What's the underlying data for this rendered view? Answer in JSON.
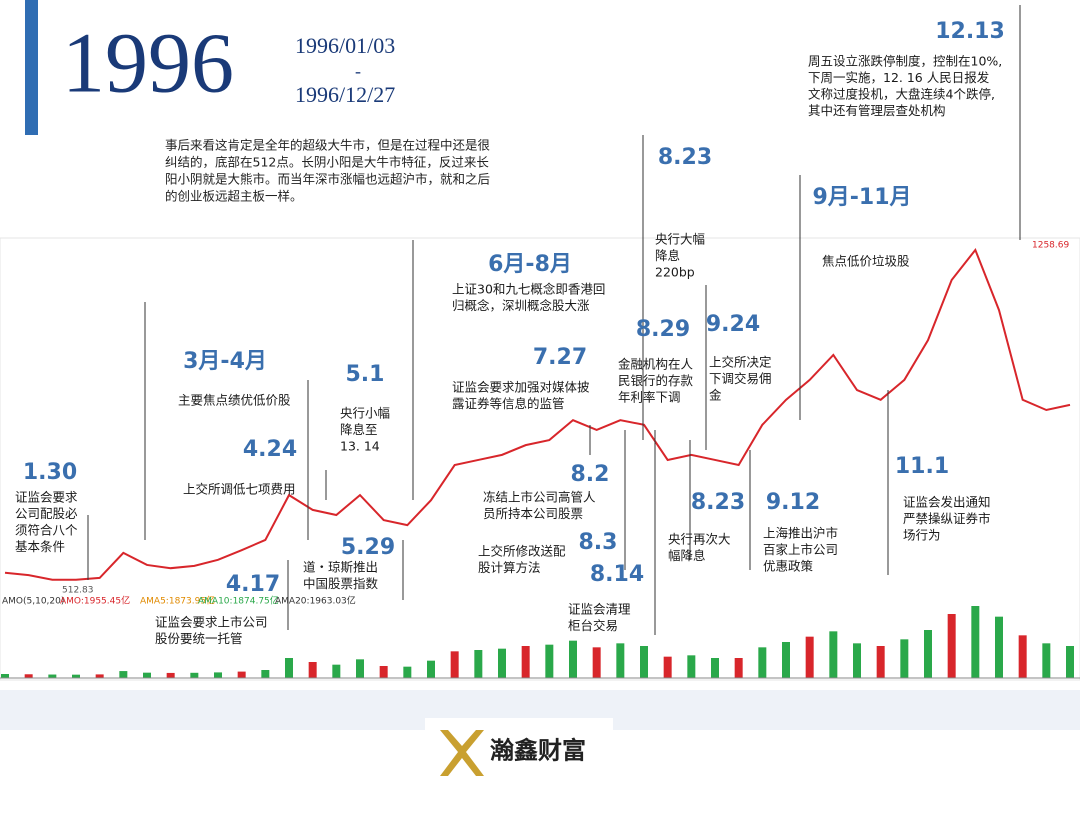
{
  "header": {
    "year": "1996",
    "start": "1996/01/03",
    "dash": "-",
    "end": "1996/12/27"
  },
  "intro": [
    "事后来看这肯定是全年的超级大牛市，但是在过程中还是很",
    "纠结的，底部在512点。长阴小阳是大牛市特征，反过来长",
    "阳小阴就是大熊市。而当年深市涨幅也远超沪市，就和之后",
    "的创业板远超主板一样。"
  ],
  "chart_data": {
    "type": "line",
    "color": "#d8262b",
    "values": [
      550,
      545,
      535,
      535,
      539,
      593,
      567,
      560,
      565,
      578,
      599,
      621,
      718,
      686,
      675,
      718,
      664,
      653,
      707,
      783,
      794,
      805,
      826,
      837,
      880,
      859,
      880,
      870,
      794,
      805,
      794,
      783,
      870,
      924,
      967,
      1021,
      945,
      924,
      967,
      1053,
      1183,
      1248,
      1118,
      924,
      902,
      913
    ],
    "high": 1258.69,
    "low": 512.83,
    "volume": {
      "color": "#2aa84a",
      "values": [
        300,
        280,
        260,
        250,
        270,
        520,
        400,
        380,
        390,
        420,
        480,
        600,
        1500,
        1200,
        1000,
        1400,
        900,
        850,
        1300,
        2000,
        2100,
        2200,
        2400,
        2500,
        2800,
        2300,
        2600,
        2400,
        1600,
        1700,
        1500,
        1500,
        2300,
        2700,
        3100,
        3500,
        2600,
        2400,
        2900,
        3600,
        4800,
        5400,
        4600,
        3200,
        2600,
        2400
      ]
    },
    "indicators": [
      "AMO(5,10,20)",
      "AMO:1955.45亿",
      "AMA5:1873.95亿",
      "AMA10:1874.75亿",
      "AMA20:1963.03亿"
    ]
  },
  "annotations": [
    {
      "date": "1.30",
      "lines": [
        "证监会要求",
        "公司配股必",
        "须符合八个",
        "基本条件"
      ]
    },
    {
      "date": "3月-4月",
      "lines": [
        "主要焦点绩优低价股"
      ]
    },
    {
      "date": "4.24",
      "lines": [
        "上交所调低七项费用"
      ]
    },
    {
      "date": "4.17",
      "lines": [
        "证监会要求上市公司",
        "股份要统一托管"
      ]
    },
    {
      "date": "5.1",
      "lines": [
        "央行小幅",
        "降息至",
        "13. 14"
      ]
    },
    {
      "date": "5.29",
      "lines": [
        "道・琼斯推出",
        "中国股票指数"
      ]
    },
    {
      "date": "6月-8月",
      "lines": [
        "上证30和九七概念即香港回",
        "归概念，深圳概念股大涨"
      ]
    },
    {
      "date": "7.27",
      "lines": [
        "证监会要求加强对媒体披",
        "露证券等信息的监管"
      ]
    },
    {
      "date": "8.2",
      "lines": [
        "冻结上市公司高管人",
        "员所持本公司股票"
      ]
    },
    {
      "date": "8.3",
      "lines": [
        "上交所修改送配",
        "股计算方法"
      ]
    },
    {
      "date": "8.14",
      "lines": [
        "证监会清理",
        "柜台交易"
      ]
    },
    {
      "date": "8.29",
      "lines": [
        "金融机构在人",
        "民银行的存款",
        "年利率下调"
      ]
    },
    {
      "date": "8.23",
      "lines": [
        "央行大幅",
        "降息",
        "220bp"
      ]
    },
    {
      "date": "8.23",
      "lines": [
        "央行再次大",
        "幅降息"
      ]
    },
    {
      "date": "9.24",
      "lines": [
        "上交所决定",
        "下调交易佣",
        "金"
      ]
    },
    {
      "date": "9.12",
      "lines": [
        "上海推出沪市",
        "百家上市公司",
        "优惠政策"
      ]
    },
    {
      "date": "9月-11月",
      "lines": [
        "焦点低价垃圾股"
      ]
    },
    {
      "date": "11.1",
      "lines": [
        "证监会发出通知",
        "严禁操纵证券市",
        "场行为"
      ]
    },
    {
      "date": "12.13",
      "lines": [
        "周五设立涨跌停制度，控制在10%,",
        "下周一实施，12. 16 人民日报发",
        "文称过度投机，大盘连续4个跌停,",
        "其中还有管理层查处机构"
      ]
    }
  ],
  "logo": {
    "name": "瀚鑫财富"
  }
}
